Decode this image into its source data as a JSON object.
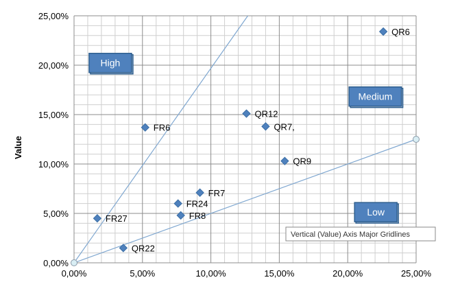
{
  "chart_data": {
    "type": "scatter",
    "title": "",
    "xlabel": "",
    "ylabel": "Value",
    "xlim": [
      0,
      0.25
    ],
    "ylim": [
      0,
      0.25
    ],
    "x_major_step": 0.05,
    "y_major_step": 0.05,
    "x_minor_step": 0.01,
    "y_minor_step": 0.01,
    "grid": true,
    "x_tick_labels": [
      "0,00%",
      "5,00%",
      "10,00%",
      "15,00%",
      "20,00%",
      "25,00%"
    ],
    "y_tick_labels": [
      "0,00%",
      "5,00%",
      "10,00%",
      "15,00%",
      "20,00%",
      "25,00%"
    ],
    "points": [
      {
        "label": "QR6",
        "x": 0.226,
        "y": 0.234
      },
      {
        "label": "QR12",
        "x": 0.126,
        "y": 0.151
      },
      {
        "label": "QR7,",
        "x": 0.14,
        "y": 0.138
      },
      {
        "label": "FR6",
        "x": 0.052,
        "y": 0.137
      },
      {
        "label": "QR9",
        "x": 0.154,
        "y": 0.103
      },
      {
        "label": "FR7",
        "x": 0.092,
        "y": 0.071
      },
      {
        "label": "FR24",
        "x": 0.076,
        "y": 0.06
      },
      {
        "label": "FR8",
        "x": 0.078,
        "y": 0.048
      },
      {
        "label": "FR27",
        "x": 0.017,
        "y": 0.045
      },
      {
        "label": "QR22",
        "x": 0.036,
        "y": 0.015
      }
    ],
    "reference_lines": [
      {
        "from": [
          0,
          0
        ],
        "to": [
          0.127,
          0.25
        ]
      },
      {
        "from": [
          0,
          0
        ],
        "to": [
          0.25,
          0.125
        ]
      }
    ],
    "regions": [
      {
        "label": "High",
        "x": 0.011,
        "y": 0.212
      },
      {
        "label": "Medium",
        "x": 0.201,
        "y": 0.178
      },
      {
        "label": "Low",
        "x": 0.205,
        "y": 0.061
      }
    ],
    "tooltip": "Vertical (Value) Axis Major Gridlines",
    "colors": {
      "marker": "#4f81bd",
      "marker_stroke": "#3a6ea5",
      "line": "#7fa7d0",
      "major_grid": "#8c8c8c",
      "minor_grid": "#cfcfcf",
      "region_fill": "#4f81bd",
      "endpoint_fill": "#d9eef4"
    }
  }
}
